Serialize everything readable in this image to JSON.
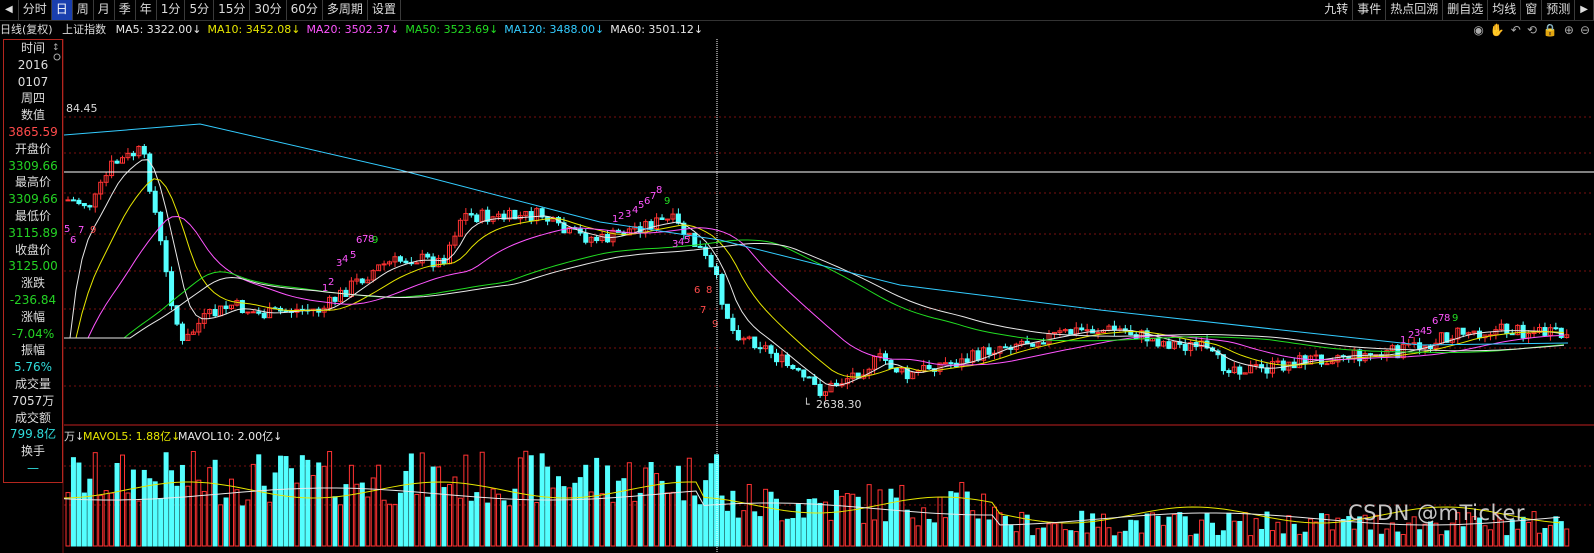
{
  "toolbar": {
    "left": [
      {
        "name": "prev-arrow-button",
        "label": "◀",
        "arrow": true
      },
      {
        "name": "tab-fenshi",
        "label": "分时"
      },
      {
        "name": "tab-day",
        "label": "日",
        "active": true
      },
      {
        "name": "tab-week",
        "label": "周"
      },
      {
        "name": "tab-month",
        "label": "月"
      },
      {
        "name": "tab-season",
        "label": "季"
      },
      {
        "name": "tab-year",
        "label": "年"
      },
      {
        "name": "tab-1min",
        "label": "1分"
      },
      {
        "name": "tab-5min",
        "label": "5分"
      },
      {
        "name": "tab-15min",
        "label": "15分"
      },
      {
        "name": "tab-30min",
        "label": "30分"
      },
      {
        "name": "tab-60min",
        "label": "60分"
      },
      {
        "name": "tab-multi-period",
        "label": "多周期"
      },
      {
        "name": "tab-settings",
        "label": "设置"
      }
    ],
    "right": [
      {
        "name": "tool-jiuzhuan",
        "label": "九转"
      },
      {
        "name": "tool-events",
        "label": "事件"
      },
      {
        "name": "tool-hotspot",
        "label": "热点回溯"
      },
      {
        "name": "tool-delete-selected",
        "label": "删自选"
      },
      {
        "name": "tool-average-line",
        "label": "均线"
      },
      {
        "name": "tool-window",
        "label": "窗"
      },
      {
        "name": "tool-forecast",
        "label": "预测"
      },
      {
        "name": "next-arrow-button",
        "label": "▶",
        "arrow": true
      }
    ]
  },
  "ma_bar": {
    "period": "日线(复权)",
    "index_name": "上证指数",
    "items": [
      {
        "label": "MA5: 3322.00↓",
        "color": "#e8e8e8"
      },
      {
        "label": "MA10: 3452.08↓",
        "color": "#e6e600"
      },
      {
        "label": "MA20: 3502.37↓",
        "color": "#ff55ff"
      },
      {
        "label": "MA50: 3523.69↓",
        "color": "#22dd22"
      },
      {
        "label": "MA120: 3488.00↓",
        "color": "#33ccff"
      },
      {
        "label": "MA60: 3501.12↓",
        "color": "#e8e8e8"
      }
    ]
  },
  "tool_icons": [
    "eye-icon",
    "hand-icon",
    "undo-icon",
    "rotate-icon",
    "lock-icon",
    "zoom-in-icon",
    "zoom-out-icon"
  ],
  "info_panel": [
    {
      "text": "时间",
      "cls": "lbl"
    },
    {
      "text": "2016",
      "cls": "white"
    },
    {
      "text": "0107",
      "cls": "white"
    },
    {
      "text": "周四",
      "cls": "lbl"
    },
    {
      "text": "数值",
      "cls": "lbl"
    },
    {
      "text": "3865.59",
      "cls": "red"
    },
    {
      "text": "开盘价",
      "cls": "lbl"
    },
    {
      "text": "3309.66",
      "cls": "green"
    },
    {
      "text": "最高价",
      "cls": "lbl"
    },
    {
      "text": "3309.66",
      "cls": "green"
    },
    {
      "text": "最低价",
      "cls": "lbl"
    },
    {
      "text": "3115.89",
      "cls": "green"
    },
    {
      "text": "收盘价",
      "cls": "lbl"
    },
    {
      "text": "3125.00",
      "cls": "green"
    },
    {
      "text": "涨跌",
      "cls": "lbl"
    },
    {
      "text": "-236.84",
      "cls": "green"
    },
    {
      "text": "涨幅",
      "cls": "lbl"
    },
    {
      "text": "-7.04%",
      "cls": "green"
    },
    {
      "text": "振幅",
      "cls": "lbl"
    },
    {
      "text": "5.76%",
      "cls": "cyan"
    },
    {
      "text": "成交量",
      "cls": "lbl"
    },
    {
      "text": "7057万",
      "cls": "white"
    },
    {
      "text": "成交额",
      "cls": "lbl"
    },
    {
      "text": "799.8亿",
      "cls": "cyan"
    },
    {
      "text": "换手",
      "cls": "lbl"
    },
    {
      "text": "—",
      "cls": "cyan"
    }
  ],
  "chart_labels": {
    "high_label": "84.45",
    "low_label": "2638.30",
    "mavol5": "MAVOL5: 1.88亿↓",
    "mavol10": "MAVOL10: 2.00亿↓",
    "vol_prefix": "万↓"
  },
  "td_counts": [
    {
      "t": "5",
      "c": "#ff55ff"
    },
    {
      "t": "6",
      "c": "#ff55ff"
    },
    {
      "t": "7",
      "c": "#ff55ff"
    },
    {
      "t": "9",
      "c": "#ff4b4b"
    },
    {
      "t": "1",
      "c": "#ff55ff"
    },
    {
      "t": "2",
      "c": "#ff55ff"
    },
    {
      "t": "3",
      "c": "#ff55ff"
    },
    {
      "t": "4",
      "c": "#ff55ff"
    },
    {
      "t": "5",
      "c": "#ff55ff"
    },
    {
      "t": "6",
      "c": "#ff55ff"
    },
    {
      "t": "7",
      "c": "#ff55ff"
    },
    {
      "t": "8",
      "c": "#ff55ff"
    },
    {
      "t": "9",
      "c": "#22dd22"
    },
    {
      "t": "1",
      "c": "#ff55ff"
    },
    {
      "t": "2",
      "c": "#ff55ff"
    },
    {
      "t": "3",
      "c": "#ff55ff"
    },
    {
      "t": "4",
      "c": "#ff55ff"
    },
    {
      "t": "5",
      "c": "#ff55ff"
    },
    {
      "t": "6",
      "c": "#ff55ff"
    },
    {
      "t": "7",
      "c": "#ff55ff"
    },
    {
      "t": "8",
      "c": "#ff55ff"
    },
    {
      "t": "9",
      "c": "#22dd22"
    },
    {
      "t": "3",
      "c": "#ff55ff"
    },
    {
      "t": "4",
      "c": "#ff55ff"
    },
    {
      "t": "5",
      "c": "#ff55ff"
    },
    {
      "t": "6",
      "c": "#ff4b4b"
    },
    {
      "t": "7",
      "c": "#ff4b4b"
    },
    {
      "t": "8",
      "c": "#ff4b4b"
    },
    {
      "t": "9",
      "c": "#ff4b4b"
    },
    {
      "t": "1",
      "c": "#ff55ff"
    },
    {
      "t": "2",
      "c": "#ff55ff"
    },
    {
      "t": "3",
      "c": "#ff55ff"
    },
    {
      "t": "4",
      "c": "#ff55ff"
    },
    {
      "t": "5",
      "c": "#ff55ff"
    },
    {
      "t": "6",
      "c": "#ff55ff"
    },
    {
      "t": "7",
      "c": "#ff55ff"
    },
    {
      "t": "8",
      "c": "#ff55ff"
    },
    {
      "t": "9",
      "c": "#22dd22"
    }
  ],
  "colors": {
    "up": "#ff3232",
    "down": "#54ffff",
    "grid": "#7a1010",
    "crosshair": "#ffffff"
  },
  "watermark": "CSDN @mTicker"
}
